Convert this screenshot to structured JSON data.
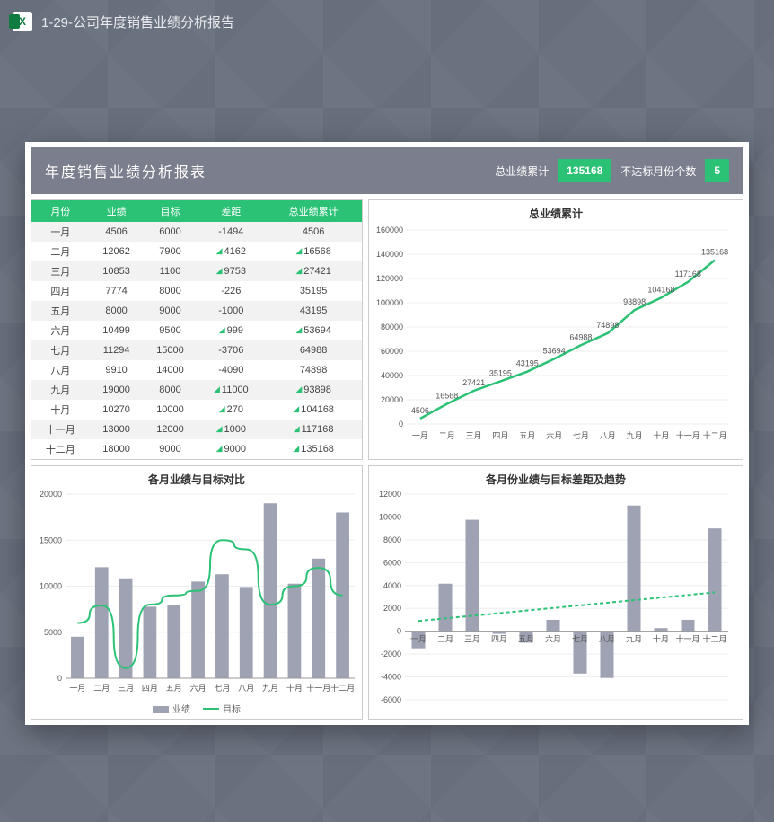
{
  "window": {
    "title": "1-29-公司年度销售业绩分析报告"
  },
  "header": {
    "title": "年度销售业绩分析报表",
    "kpi1_label": "总业绩累计",
    "kpi1_value": "135168",
    "kpi2_label": "不达标月份个数",
    "kpi2_value": "5",
    "bg": "#7b7e8c",
    "accent": "#2bc275"
  },
  "table": {
    "headers": [
      "月份",
      "业绩",
      "目标",
      "差距",
      "总业绩累计"
    ],
    "rows": [
      {
        "m": "一月",
        "perf": 4506,
        "tgt": 6000,
        "gap": -1494,
        "cum": 4506,
        "flag": false
      },
      {
        "m": "二月",
        "perf": 12062,
        "tgt": 7900,
        "gap": 4162,
        "cum": 16568,
        "flag": true
      },
      {
        "m": "三月",
        "perf": 10853,
        "tgt": 1100,
        "gap": 9753,
        "cum": 27421,
        "flag": true
      },
      {
        "m": "四月",
        "perf": 7774,
        "tgt": 8000,
        "gap": -226,
        "cum": 35195,
        "flag": false
      },
      {
        "m": "五月",
        "perf": 8000,
        "tgt": 9000,
        "gap": -1000,
        "cum": 43195,
        "flag": false
      },
      {
        "m": "六月",
        "perf": 10499,
        "tgt": 9500,
        "gap": 999,
        "cum": 53694,
        "flag": true
      },
      {
        "m": "七月",
        "perf": 11294,
        "tgt": 15000,
        "gap": -3706,
        "cum": 64988,
        "flag": false
      },
      {
        "m": "八月",
        "perf": 9910,
        "tgt": 14000,
        "gap": -4090,
        "cum": 74898,
        "flag": false
      },
      {
        "m": "九月",
        "perf": 19000,
        "tgt": 8000,
        "gap": 11000,
        "cum": 93898,
        "flag": true
      },
      {
        "m": "十月",
        "perf": 10270,
        "tgt": 10000,
        "gap": 270,
        "cum": 104168,
        "flag": true
      },
      {
        "m": "十一月",
        "perf": 13000,
        "tgt": 12000,
        "gap": 1000,
        "cum": 117168,
        "flag": true
      },
      {
        "m": "十二月",
        "perf": 18000,
        "tgt": 9000,
        "gap": 9000,
        "cum": 135168,
        "flag": true
      }
    ],
    "header_bg": "#2bc275",
    "stripe": "#f2f2f2"
  },
  "chart_cum": {
    "type": "line",
    "title": "总业绩累计",
    "months": [
      "一月",
      "二月",
      "三月",
      "四月",
      "五月",
      "六月",
      "七月",
      "八月",
      "九月",
      "十月",
      "十一月",
      "十二月"
    ],
    "values": [
      4506,
      16568,
      27421,
      35195,
      43195,
      53694,
      64988,
      74898,
      93898,
      104168,
      117168,
      135168
    ],
    "ylim": [
      0,
      160000
    ],
    "ytick": 20000,
    "line_color": "#2bc275",
    "line_width": 2.5,
    "label_fontsize": 9,
    "grid_color": "#eeeeee"
  },
  "chart_compare": {
    "type": "bar+line",
    "title": "各月业绩与目标对比",
    "months": [
      "一月",
      "二月",
      "三月",
      "四月",
      "五月",
      "六月",
      "七月",
      "八月",
      "九月",
      "十月",
      "十一月",
      "十二月"
    ],
    "bars": [
      4506,
      12062,
      10853,
      7774,
      8000,
      10499,
      11294,
      9910,
      19000,
      10270,
      13000,
      18000
    ],
    "line": [
      6000,
      7900,
      1100,
      8000,
      9000,
      9500,
      15000,
      14000,
      8000,
      10000,
      12000,
      9000
    ],
    "ylim": [
      0,
      20000
    ],
    "ytick": 5000,
    "bar_color": "#9ea2b3",
    "line_color": "#2bc275",
    "legend": {
      "bar": "业绩",
      "line": "目标"
    }
  },
  "chart_gap": {
    "type": "bar+trend",
    "title": "各月份业绩与目标差距及趋势",
    "months": [
      "一月",
      "二月",
      "三月",
      "四月",
      "五月",
      "六月",
      "七月",
      "八月",
      "九月",
      "十月",
      "十一月",
      "十二月"
    ],
    "bars": [
      -1494,
      4162,
      9753,
      -226,
      -1000,
      999,
      -3706,
      -4090,
      11000,
      270,
      1000,
      9000
    ],
    "ylim": [
      -6000,
      12000
    ],
    "ytick": 2000,
    "bar_color": "#9ea2b3",
    "trend_color": "#2bc275",
    "trend_dash": "4,3",
    "trend_y0": 900,
    "trend_y1": 3400
  }
}
